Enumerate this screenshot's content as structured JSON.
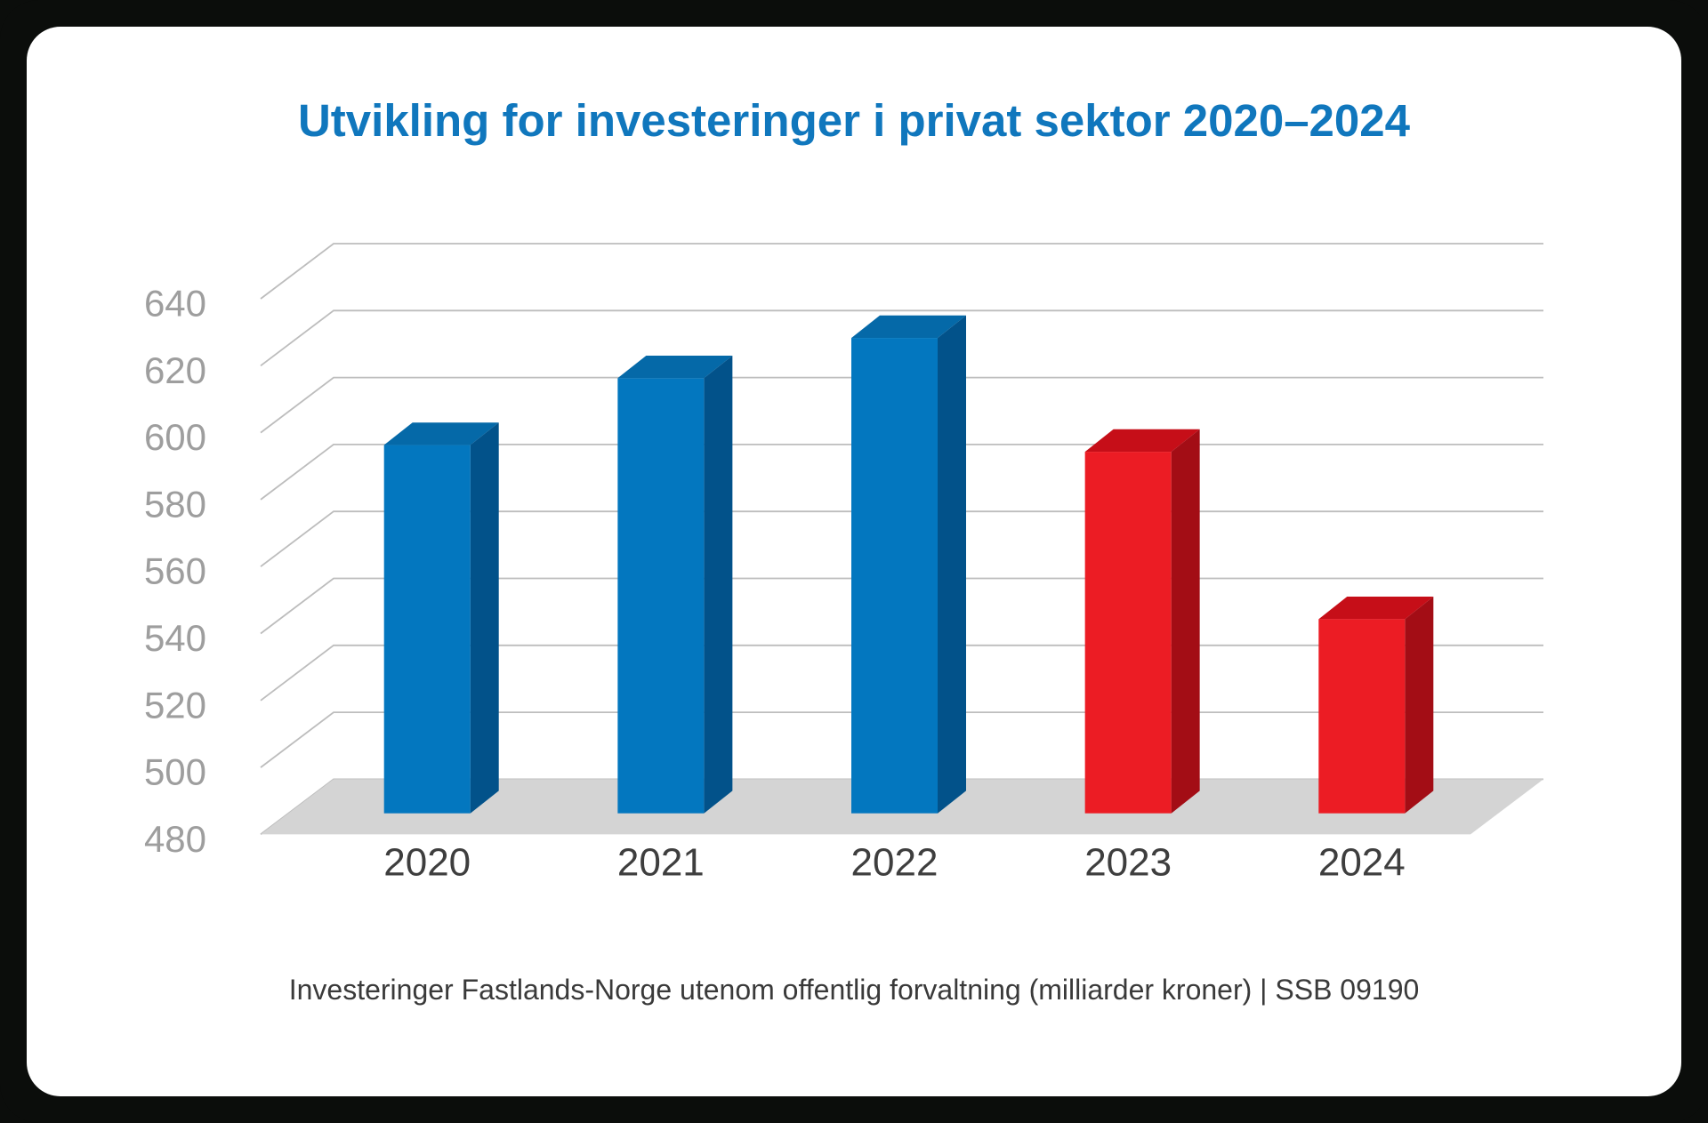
{
  "title": "Utvikling for investeringer i privat sektor 2020–2024",
  "caption": "Investeringer Fastlands-Norge utenom offentlig forvaltning (milliarder kroner) | SSB 09190",
  "colors": {
    "page_background": "#0b0d0b",
    "card_background": "#ffffff",
    "title": "#1077bd",
    "caption": "#3a3a3a",
    "gridline": "#bdbdbd",
    "floor": "#d4d4d4",
    "y_tick_label": "#9e9e9e",
    "x_tick_label": "#3e3e3e",
    "blue_bar": {
      "front": "#0377bf",
      "top": "#0569a8",
      "side": "#02528a"
    },
    "red_bar": {
      "front": "#ec1c24",
      "top": "#c60e18",
      "side": "#a30d15"
    }
  },
  "chart_data": {
    "type": "bar",
    "variant": "3d-column",
    "title": "Utvikling for investeringer i privat sektor 2020–2024",
    "subtitle": "Investeringer Fastlands-Norge utenom offentlig forvaltning (milliarder kroner) | SSB 09190",
    "source": "SSB 09190",
    "unit": "milliarder kroner",
    "categories": [
      "2020",
      "2021",
      "2022",
      "2023",
      "2024"
    ],
    "values": [
      590,
      610,
      622,
      588,
      538
    ],
    "bar_color_keys": [
      "blue_bar",
      "blue_bar",
      "blue_bar",
      "red_bar",
      "red_bar"
    ],
    "xlabel": "",
    "ylabel": "",
    "ylim": [
      480,
      640
    ],
    "yticks": [
      480,
      500,
      520,
      540,
      560,
      580,
      600,
      620,
      640
    ],
    "grid": true,
    "legend": false
  }
}
